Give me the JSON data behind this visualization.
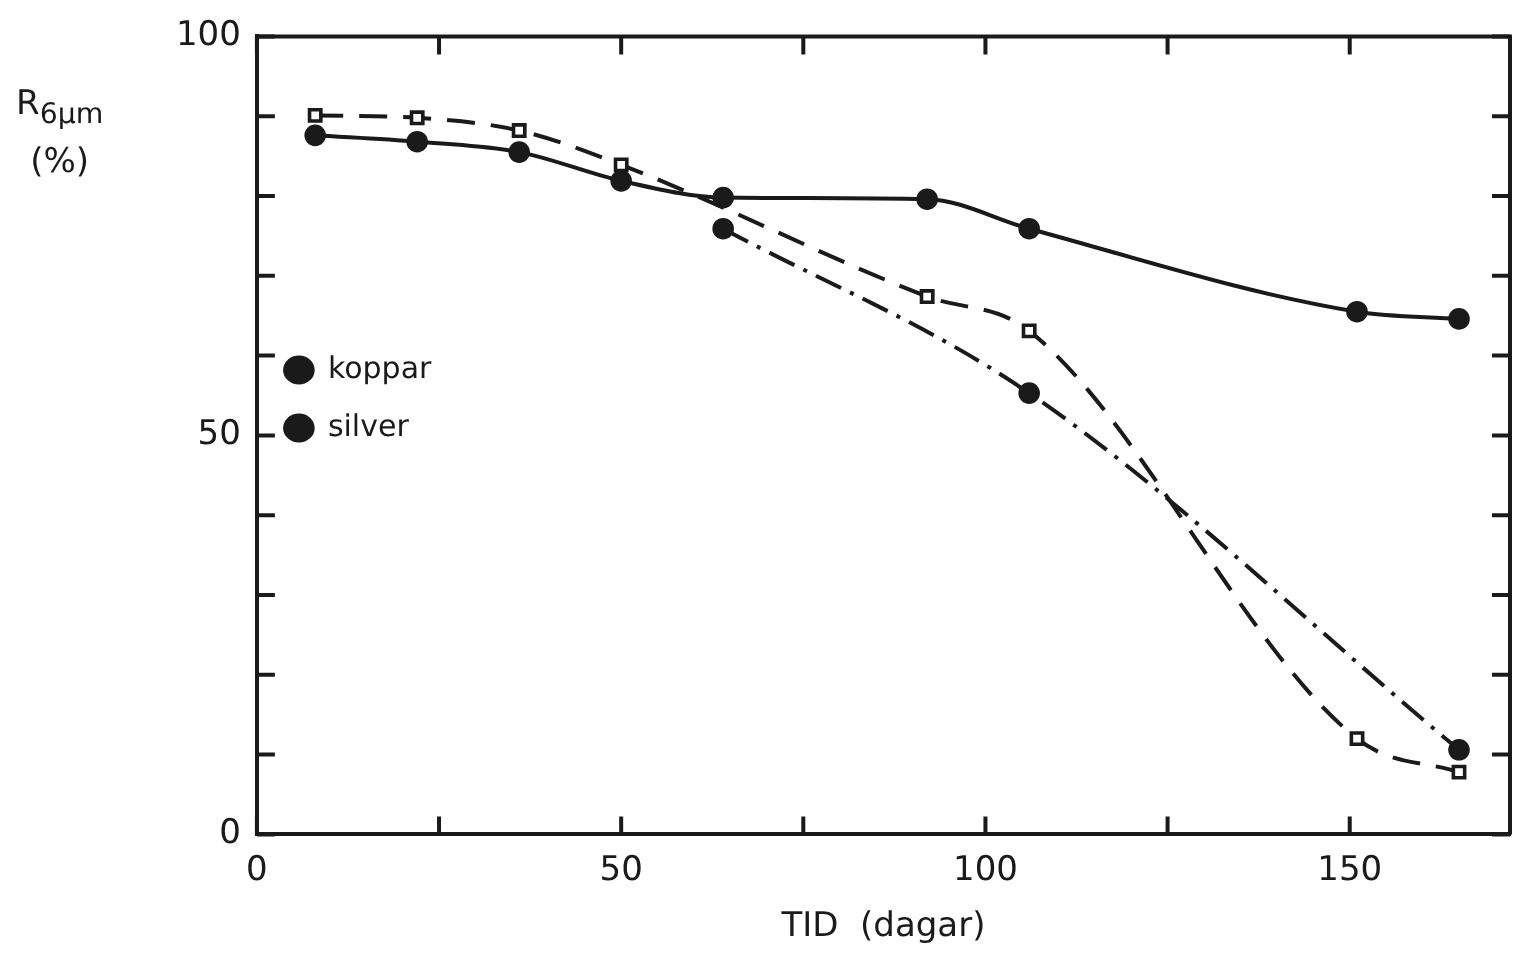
{
  "chart_data": {
    "type": "line",
    "xlabel": "TID  (dagar)",
    "ylabel": "R$_{6μm}$ (%)",
    "xlim": [
      0,
      172
    ],
    "xticks": [
      0,
      {
        "value": 25,
        "label": null
      },
      50,
      {
        "value": 75,
        "label": null
      },
      100,
      {
        "value": 125,
        "label": null
      },
      150
    ],
    "ylim": [
      0,
      100
    ],
    "yticks": [
      0,
      {
        "value": 10,
        "label": null
      },
      {
        "value": 20,
        "label": null
      },
      {
        "value": 30,
        "label": null
      },
      {
        "value": 40,
        "label": null
      },
      50,
      {
        "value": 60,
        "label": null
      },
      {
        "value": 70,
        "label": null
      },
      {
        "value": 80,
        "label": null
      },
      {
        "value": 90,
        "label": null
      },
      100
    ],
    "grid": false,
    "legend": "left",
    "series": [
      {
        "name": "koppar",
        "color": "#1a1a1a",
        "marker": "circle",
        "line_style": "solid",
        "x": [
          8,
          22,
          36,
          50,
          64,
          92,
          106,
          151,
          165
        ],
        "values": [
          87.6,
          86.8,
          85.5,
          81.9,
          79.8,
          79.6,
          75.9,
          65.5,
          64.6
        ]
      },
      {
        "name": "silver",
        "color": "#1a1a1a",
        "marker": "circle",
        "line_style": "dashdot",
        "x": [
          64,
          106,
          165
        ],
        "values": [
          75.9,
          55.3,
          10.6
        ]
      },
      {
        "color": "#1a1a1a",
        "marker": "square",
        "line_style": "dashed",
        "x": [
          8,
          22,
          36,
          50,
          92,
          106,
          151,
          165
        ],
        "values": [
          90.1,
          89.8,
          88.2,
          83.9,
          67.4,
          63.1,
          12.0,
          7.8
        ]
      }
    ]
  }
}
